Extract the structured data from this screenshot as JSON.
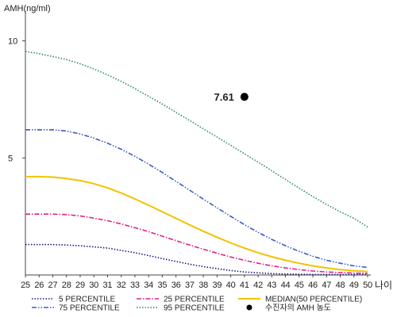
{
  "chart_data": {
    "type": "line",
    "ylabel": "AMH(ng/ml)",
    "xlabel": "나이",
    "xlim": [
      25,
      50
    ],
    "ylim": [
      0,
      11
    ],
    "yticks": [
      5,
      10
    ],
    "xticks": [
      25,
      26,
      27,
      28,
      29,
      30,
      31,
      32,
      33,
      34,
      35,
      36,
      37,
      38,
      39,
      40,
      41,
      42,
      43,
      44,
      45,
      46,
      47,
      48,
      49,
      50
    ],
    "series": [
      {
        "name": "5 PERCENTILE",
        "color": "#1a1a7a",
        "dash": "dotted",
        "x": [
          25,
          26,
          27,
          28,
          29,
          30,
          31,
          32,
          33,
          34,
          35,
          36,
          37,
          38,
          39,
          40,
          41,
          42,
          43,
          44,
          45,
          46,
          47,
          48,
          49,
          50
        ],
        "y": [
          1.3,
          1.3,
          1.3,
          1.28,
          1.25,
          1.2,
          1.15,
          1.05,
          0.95,
          0.83,
          0.7,
          0.58,
          0.46,
          0.36,
          0.27,
          0.19,
          0.13,
          0.09,
          0.06,
          0.04,
          0.03,
          0.02,
          0.02,
          0.02,
          0.02,
          0.02
        ]
      },
      {
        "name": "25 PERCENTILE",
        "color": "#e0218a",
        "dash": "dashdot",
        "x": [
          25,
          26,
          27,
          28,
          29,
          30,
          31,
          32,
          33,
          34,
          35,
          36,
          37,
          38,
          39,
          40,
          41,
          42,
          43,
          44,
          45,
          46,
          47,
          48,
          49,
          50
        ],
        "y": [
          2.6,
          2.6,
          2.6,
          2.58,
          2.52,
          2.43,
          2.32,
          2.18,
          2.02,
          1.85,
          1.66,
          1.47,
          1.28,
          1.1,
          0.93,
          0.77,
          0.63,
          0.5,
          0.39,
          0.3,
          0.23,
          0.17,
          0.13,
          0.1,
          0.08,
          0.07
        ]
      },
      {
        "name": "MEDIAN(50 PERCENTILE)",
        "color": "#f2c200",
        "dash": "solid",
        "x": [
          25,
          26,
          27,
          28,
          29,
          30,
          31,
          32,
          33,
          34,
          35,
          36,
          37,
          38,
          39,
          40,
          41,
          42,
          43,
          44,
          45,
          46,
          47,
          48,
          49,
          50
        ],
        "y": [
          4.2,
          4.2,
          4.18,
          4.12,
          4.03,
          3.9,
          3.72,
          3.5,
          3.25,
          2.98,
          2.7,
          2.42,
          2.14,
          1.87,
          1.61,
          1.37,
          1.15,
          0.95,
          0.78,
          0.63,
          0.5,
          0.39,
          0.3,
          0.23,
          0.18,
          0.15
        ]
      },
      {
        "name": "75 PERCENTILE",
        "color": "#3a5bc7",
        "dash": "dashdotdot",
        "x": [
          25,
          26,
          27,
          28,
          29,
          30,
          31,
          32,
          33,
          34,
          35,
          36,
          37,
          38,
          39,
          40,
          41,
          42,
          43,
          44,
          45,
          46,
          47,
          48,
          49,
          50
        ],
        "y": [
          6.2,
          6.2,
          6.2,
          6.15,
          6.02,
          5.85,
          5.63,
          5.37,
          5.07,
          4.73,
          4.38,
          4.0,
          3.62,
          3.24,
          2.87,
          2.5,
          2.15,
          1.82,
          1.52,
          1.25,
          1.01,
          0.8,
          0.63,
          0.5,
          0.39,
          0.32
        ]
      },
      {
        "name": "95 PERCENTILE",
        "color": "#2e8b57",
        "dash": "dotted",
        "x": [
          25,
          26,
          27,
          28,
          29,
          30,
          31,
          32,
          33,
          34,
          35,
          36,
          37,
          38,
          39,
          40,
          41,
          42,
          43,
          44,
          45,
          46,
          47,
          48,
          49,
          50
        ],
        "y": [
          9.55,
          9.45,
          9.33,
          9.2,
          9.02,
          8.8,
          8.55,
          8.27,
          7.96,
          7.63,
          7.3,
          6.95,
          6.6,
          6.24,
          5.89,
          5.54,
          5.18,
          4.82,
          4.45,
          4.08,
          3.71,
          3.35,
          3.01,
          2.7,
          2.42,
          2.05
        ]
      }
    ],
    "point": {
      "name": "수진자의 AMH 농도",
      "x": 41,
      "y": 7.61,
      "label": "7.61",
      "color": "#000000"
    },
    "legend": {
      "placement": "bottom",
      "rows": [
        [
          "5 PERCENTILE",
          "25 PERCENTILE",
          "MEDIAN(50 PERCENTILE)"
        ],
        [
          "75 PERCENTILE",
          "95 PERCENTILE",
          "수진자의 AMH 농도"
        ]
      ]
    },
    "grid": false
  }
}
